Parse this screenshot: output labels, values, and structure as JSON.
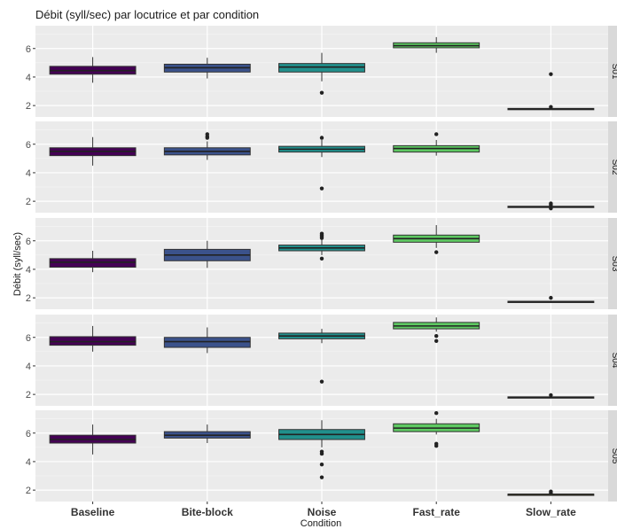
{
  "chart_data": {
    "type": "boxplot",
    "title": "Débit (syll/sec) par locutrice et par condition",
    "xlabel": "Condition",
    "ylabel": "Débit (syll/sec)",
    "categories": [
      "Baseline",
      "Bite-block",
      "Noise",
      "Fast_rate",
      "Slow_rate"
    ],
    "colors": [
      "#440154",
      "#3b528b",
      "#21908c",
      "#5ec962",
      "#fde725"
    ],
    "ylim": [
      1.2,
      7.6
    ],
    "yticks": [
      2,
      4,
      6
    ],
    "grid": true,
    "legend": "none",
    "panels": [
      {
        "strip": "S01",
        "boxes": [
          {
            "category": "Baseline",
            "min": 3.6,
            "q1": 4.2,
            "median": 4.45,
            "q3": 4.75,
            "max": 5.4,
            "outliers": []
          },
          {
            "category": "Bite-block",
            "min": 3.9,
            "q1": 4.35,
            "median": 4.65,
            "q3": 4.9,
            "max": 5.35,
            "outliers": []
          },
          {
            "category": "Noise",
            "min": 3.7,
            "q1": 4.35,
            "median": 4.7,
            "q3": 4.95,
            "max": 5.7,
            "outliers": [
              2.9
            ]
          },
          {
            "category": "Fast_rate",
            "min": 5.7,
            "q1": 6.05,
            "median": 6.2,
            "q3": 6.4,
            "max": 6.8,
            "outliers": []
          },
          {
            "category": "Slow_rate",
            "min": 1.7,
            "q1": 1.73,
            "median": 1.76,
            "q3": 1.8,
            "max": 1.85,
            "outliers": [
              4.2,
              1.9
            ]
          }
        ]
      },
      {
        "strip": "S02",
        "boxes": [
          {
            "category": "Baseline",
            "min": 4.5,
            "q1": 5.2,
            "median": 5.5,
            "q3": 5.75,
            "max": 6.5,
            "outliers": []
          },
          {
            "category": "Bite-block",
            "min": 4.9,
            "q1": 5.25,
            "median": 5.5,
            "q3": 5.75,
            "max": 6.2,
            "outliers": [
              6.7,
              6.55,
              6.45
            ]
          },
          {
            "category": "Noise",
            "min": 5.1,
            "q1": 5.45,
            "median": 5.65,
            "q3": 5.85,
            "max": 6.3,
            "outliers": [
              6.45,
              2.9
            ]
          },
          {
            "category": "Fast_rate",
            "min": 5.2,
            "q1": 5.45,
            "median": 5.7,
            "q3": 5.9,
            "max": 6.3,
            "outliers": [
              6.7
            ]
          },
          {
            "category": "Slow_rate",
            "min": 1.55,
            "q1": 1.6,
            "median": 1.62,
            "q3": 1.65,
            "max": 1.7,
            "outliers": [
              1.85,
              1.75,
              1.5
            ]
          }
        ]
      },
      {
        "strip": "S03",
        "boxes": [
          {
            "category": "Baseline",
            "min": 3.8,
            "q1": 4.15,
            "median": 4.5,
            "q3": 4.75,
            "max": 5.3,
            "outliers": []
          },
          {
            "category": "Bite-block",
            "min": 4.1,
            "q1": 4.6,
            "median": 5.0,
            "q3": 5.4,
            "max": 6.0,
            "outliers": []
          },
          {
            "category": "Noise",
            "min": 5.0,
            "q1": 5.3,
            "median": 5.5,
            "q3": 5.7,
            "max": 6.1,
            "outliers": [
              6.5,
              6.4,
              6.3,
              6.2,
              4.75
            ]
          },
          {
            "category": "Fast_rate",
            "min": 5.5,
            "q1": 5.9,
            "median": 6.15,
            "q3": 6.4,
            "max": 7.1,
            "outliers": [
              5.2
            ]
          },
          {
            "category": "Slow_rate",
            "min": 1.65,
            "q1": 1.7,
            "median": 1.73,
            "q3": 1.76,
            "max": 1.8,
            "outliers": [
              2.0
            ]
          }
        ]
      },
      {
        "strip": "S04",
        "boxes": [
          {
            "category": "Baseline",
            "min": 5.0,
            "q1": 5.45,
            "median": 5.7,
            "q3": 6.05,
            "max": 6.8,
            "outliers": []
          },
          {
            "category": "Bite-block",
            "min": 4.9,
            "q1": 5.3,
            "median": 5.7,
            "q3": 6.0,
            "max": 6.7,
            "outliers": []
          },
          {
            "category": "Noise",
            "min": 5.6,
            "q1": 5.9,
            "median": 6.1,
            "q3": 6.3,
            "max": 6.6,
            "outliers": [
              2.9
            ]
          },
          {
            "category": "Fast_rate",
            "min": 6.4,
            "q1": 6.6,
            "median": 6.8,
            "q3": 7.05,
            "max": 7.4,
            "outliers": [
              6.1,
              5.75
            ]
          },
          {
            "category": "Slow_rate",
            "min": 1.75,
            "q1": 1.78,
            "median": 1.8,
            "q3": 1.83,
            "max": 1.88,
            "outliers": [
              1.95
            ]
          }
        ]
      },
      {
        "strip": "S05",
        "boxes": [
          {
            "category": "Baseline",
            "min": 4.5,
            "q1": 5.3,
            "median": 5.55,
            "q3": 5.85,
            "max": 6.6,
            "outliers": []
          },
          {
            "category": "Bite-block",
            "min": 5.3,
            "q1": 5.65,
            "median": 5.85,
            "q3": 6.1,
            "max": 6.6,
            "outliers": []
          },
          {
            "category": "Noise",
            "min": 5.0,
            "q1": 5.55,
            "median": 5.9,
            "q3": 6.25,
            "max": 6.9,
            "outliers": [
              4.7,
              4.55,
              3.8,
              2.9
            ]
          },
          {
            "category": "Fast_rate",
            "min": 5.9,
            "q1": 6.1,
            "median": 6.35,
            "q3": 6.65,
            "max": 7.0,
            "outliers": [
              7.4,
              5.25,
              5.1
            ]
          },
          {
            "category": "Slow_rate",
            "min": 1.65,
            "q1": 1.68,
            "median": 1.7,
            "q3": 1.72,
            "max": 1.75,
            "outliers": [
              1.9,
              1.8
            ]
          }
        ]
      }
    ]
  }
}
